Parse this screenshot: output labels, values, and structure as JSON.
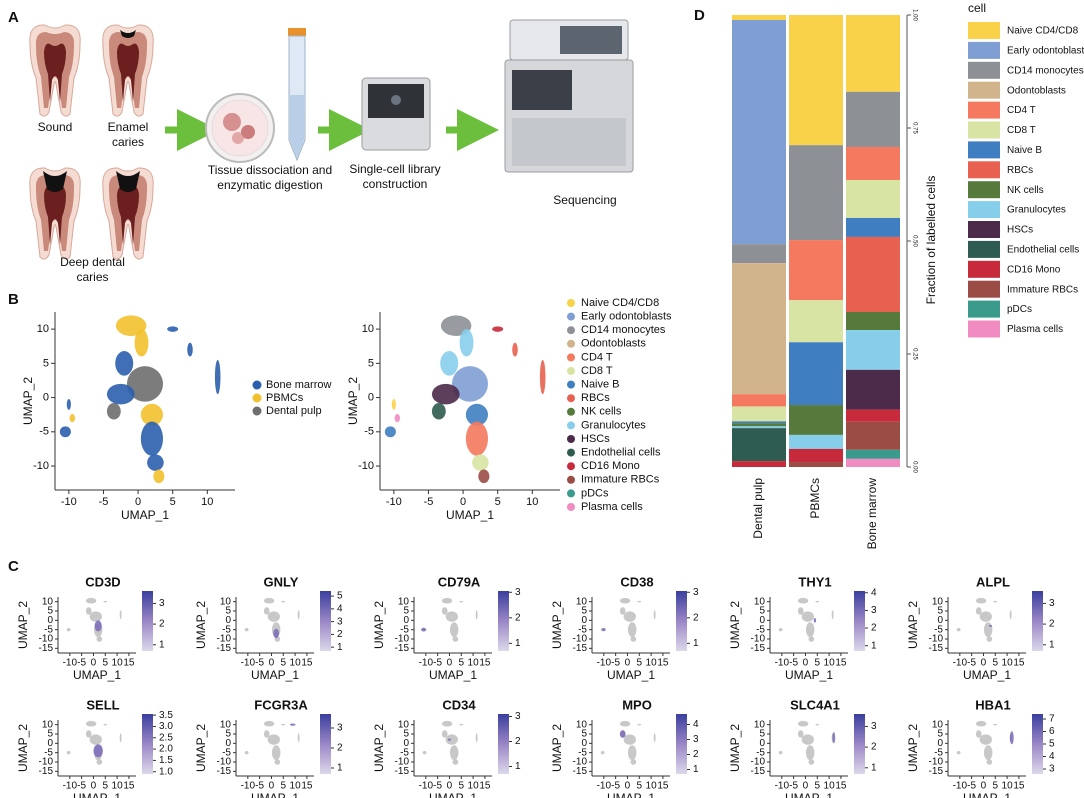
{
  "panels": {
    "a": {
      "label": "A",
      "teeth": [
        "Sound",
        "Enamel caries",
        "Deep dental caries"
      ],
      "steps": [
        "Tissue dissociation and enzymatic digestion",
        "Single-cell library construction",
        "Sequencing"
      ]
    },
    "b": {
      "label": "B",
      "x_label": "UMAP_1",
      "y_label": "UMAP_2",
      "xticks": [
        -10,
        -5,
        0,
        5,
        10
      ],
      "yticks": [
        10,
        5,
        0,
        -5,
        -10
      ],
      "samples": [
        {
          "name": "Bone marrow",
          "color": "#2b5fad"
        },
        {
          "name": "PBMCs",
          "color": "#f2c12e"
        },
        {
          "name": "Dental pulp",
          "color": "#6e6e6e"
        }
      ]
    },
    "c": {
      "label": "C",
      "x_label": "UMAP_1",
      "y_label": "UMAP_2",
      "xticks": [
        -10,
        -5,
        0,
        5,
        10,
        15
      ],
      "yticks": [
        10,
        5,
        0,
        -5,
        -10,
        -15
      ],
      "genes": [
        {
          "name": "CD3D",
          "lim": [
            0.7,
            3.6
          ],
          "ticks": [
            1,
            2,
            3
          ]
        },
        {
          "name": "GNLY",
          "lim": [
            0.7,
            5.4
          ],
          "ticks": [
            1,
            2,
            3,
            4,
            5
          ]
        },
        {
          "name": "CD79A",
          "lim": [
            0.7,
            3.05
          ],
          "ticks": [
            1,
            2,
            3
          ]
        },
        {
          "name": "CD38",
          "lim": [
            0.7,
            3.05
          ],
          "ticks": [
            1,
            2,
            3
          ]
        },
        {
          "name": "THY1",
          "lim": [
            0.7,
            4.1
          ],
          "ticks": [
            1,
            2,
            3,
            4
          ]
        },
        {
          "name": "ALPL",
          "lim": [
            0.7,
            3.6
          ],
          "ticks": [
            1,
            2,
            3
          ]
        },
        {
          "name": "SELL",
          "lim": [
            0.9,
            3.55
          ],
          "ticks": [
            {
              "value": 1,
              "label": "1.0"
            },
            {
              "value": 1.5,
              "label": "1.5"
            },
            {
              "value": 2,
              "label": "2.0"
            },
            {
              "value": 2.5,
              "label": "2.5"
            },
            {
              "value": 3,
              "label": "3.0"
            },
            {
              "value": 3.5,
              "label": "3.5"
            }
          ]
        },
        {
          "name": "FCGR3A",
          "lim": [
            0.7,
            3.7
          ],
          "ticks": [
            1,
            2,
            3
          ]
        },
        {
          "name": "CD34",
          "lim": [
            0.7,
            3.1
          ],
          "ticks": [
            1,
            2,
            3
          ]
        },
        {
          "name": "MPO",
          "lim": [
            0.7,
            4.7
          ],
          "ticks": [
            1,
            2,
            3,
            4
          ]
        },
        {
          "name": "SLC4A1",
          "lim": [
            0.7,
            3.6
          ],
          "ticks": [
            1,
            2,
            3
          ]
        },
        {
          "name": "HBA1",
          "lim": [
            2.6,
            7.4
          ],
          "ticks": [
            3,
            4,
            5,
            6,
            7
          ]
        }
      ]
    },
    "d": {
      "label": "D"
    }
  },
  "chart_data": {
    "type": "bar",
    "stacked": true,
    "categories": [
      "Dental pulp",
      "PBMCs",
      "Bone marrow"
    ],
    "y_label": "Fraction of labelled cells",
    "legend_title": "cell",
    "ylim": [
      0,
      1
    ],
    "yticks": [
      {
        "value": 0,
        "label": "0.00"
      },
      {
        "value": 0.25,
        "label": "0.25"
      },
      {
        "value": 0.5,
        "label": "0.50"
      },
      {
        "value": 0.75,
        "label": "0.75"
      },
      {
        "value": 1,
        "label": "1.00"
      }
    ],
    "series": [
      {
        "name": "Naive CD4/CD8",
        "color": "#f9d24a",
        "values": [
          0.011,
          0.288,
          0.17
        ]
      },
      {
        "name": "Early odontoblasts",
        "color": "#7f9ed4",
        "values": [
          0.496,
          0,
          0
        ]
      },
      {
        "name": "CD14 monocytes",
        "color": "#8d9196",
        "values": [
          0.042,
          0.21,
          0.122
        ]
      },
      {
        "name": "Odontoblasts",
        "color": "#d2b48c",
        "values": [
          0.29,
          0,
          0
        ]
      },
      {
        "name": "CD4 T",
        "color": "#f4795e",
        "values": [
          0.027,
          0.133,
          0.073
        ]
      },
      {
        "name": "CD8 T",
        "color": "#d8e4a3",
        "values": [
          0.033,
          0.093,
          0.084
        ]
      },
      {
        "name": "Naive B",
        "color": "#3f7fc1",
        "values": [
          0.004,
          0.139,
          0.042
        ]
      },
      {
        "name": "RBCs",
        "color": "#e8604f",
        "values": [
          0,
          0,
          0.166
        ]
      },
      {
        "name": "NK cells",
        "color": "#557a3c",
        "values": [
          0.007,
          0.066,
          0.04
        ]
      },
      {
        "name": "Granulocytes",
        "color": "#87ceeb",
        "values": [
          0.004,
          0.031,
          0.088
        ]
      },
      {
        "name": "HSCs",
        "color": "#4b2a4a",
        "values": [
          0,
          0,
          0.088
        ]
      },
      {
        "name": "Endothelial cells",
        "color": "#2f5c50",
        "values": [
          0.073,
          0,
          0
        ]
      },
      {
        "name": "CD16 Mono",
        "color": "#c72a3a",
        "values": [
          0.013,
          0.029,
          0.027
        ]
      },
      {
        "name": "Immature RBCs",
        "color": "#9b4d45",
        "values": [
          0,
          0.011,
          0.062
        ]
      },
      {
        "name": "pDCs",
        "color": "#3a9a8c",
        "values": [
          0,
          0,
          0.02
        ]
      },
      {
        "name": "Plasma cells",
        "color": "#f08cc2",
        "values": [
          0,
          0,
          0.018
        ]
      }
    ]
  }
}
